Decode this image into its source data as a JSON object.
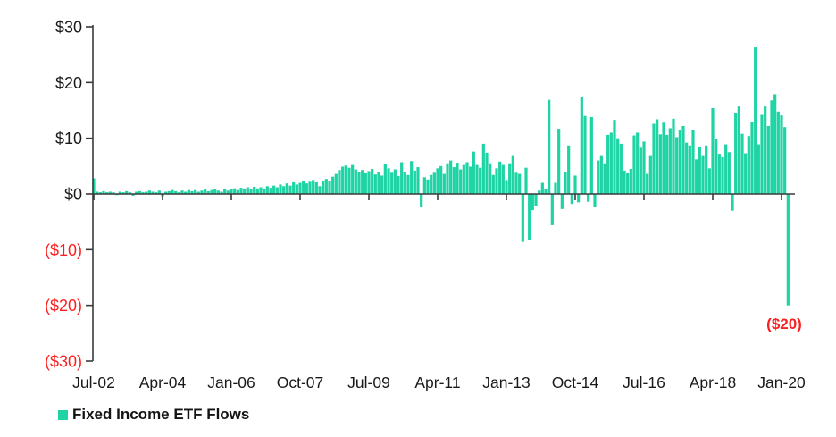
{
  "chart_data": {
    "type": "bar",
    "title": "",
    "series_name": "Fixed Income ETF Flows",
    "x_start": "Jul-02",
    "x_end": "Mar-20",
    "frequency": "monthly",
    "ylim": [
      -30,
      30
    ],
    "grid": false,
    "legend_position": "bottom-left",
    "y_ticks": [
      {
        "value": 30,
        "label": "$30"
      },
      {
        "value": 20,
        "label": "$20"
      },
      {
        "value": 10,
        "label": "$10"
      },
      {
        "value": 0,
        "label": "$0"
      },
      {
        "value": -10,
        "label": "($10)"
      },
      {
        "value": -20,
        "label": "($20)"
      },
      {
        "value": -30,
        "label": "($30)"
      }
    ],
    "x_ticks": [
      {
        "index": 0,
        "label": "Jul-02"
      },
      {
        "index": 21,
        "label": "Apr-04"
      },
      {
        "index": 42,
        "label": "Jan-06"
      },
      {
        "index": 63,
        "label": "Oct-07"
      },
      {
        "index": 84,
        "label": "Jul-09"
      },
      {
        "index": 105,
        "label": "Apr-11"
      },
      {
        "index": 126,
        "label": "Jan-13"
      },
      {
        "index": 147,
        "label": "Oct-14"
      },
      {
        "index": 168,
        "label": "Jul-16"
      },
      {
        "index": 189,
        "label": "Apr-18"
      },
      {
        "index": 210,
        "label": "Jan-20"
      }
    ],
    "values": [
      2.8,
      0.4,
      0.3,
      0.5,
      0.3,
      0.4,
      0.3,
      -0.2,
      0.4,
      0.3,
      0.5,
      0.3,
      -0.3,
      0.4,
      0.5,
      0.3,
      0.4,
      0.6,
      0.4,
      0.3,
      0.6,
      -0.4,
      0.4,
      0.5,
      0.7,
      0.5,
      0.3,
      0.6,
      0.4,
      0.7,
      0.5,
      0.7,
      0.4,
      0.6,
      0.8,
      0.5,
      0.7,
      0.9,
      0.6,
      0.4,
      0.8,
      0.6,
      0.8,
      1.0,
      0.7,
      1.1,
      0.8,
      1.2,
      0.9,
      1.3,
      1.0,
      1.2,
      0.9,
      1.4,
      1.1,
      1.5,
      1.2,
      1.7,
      1.4,
      1.9,
      1.5,
      2.1,
      1.7,
      2.0,
      2.3,
      1.9,
      2.2,
      2.5,
      2.1,
      1.4,
      2.4,
      2.7,
      2.3,
      3.1,
      3.6,
      4.3,
      4.9,
      5.1,
      4.7,
      5.2,
      4.4,
      3.9,
      4.3,
      3.7,
      4.1,
      4.5,
      3.5,
      3.9,
      3.3,
      5.4,
      4.6,
      3.8,
      4.4,
      3.2,
      5.7,
      4.0,
      3.4,
      5.9,
      4.2,
      4.8,
      -2.4,
      3.0,
      2.6,
      3.4,
      3.8,
      4.6,
      5.0,
      3.6,
      5.5,
      6.0,
      4.8,
      5.6,
      4.4,
      5.2,
      5.7,
      4.9,
      7.6,
      5.2,
      4.7,
      9.0,
      7.4,
      5.5,
      3.4,
      4.6,
      5.8,
      5.2,
      2.5,
      5.5,
      6.8,
      3.8,
      3.6,
      -8.6,
      4.7,
      -8.3,
      -2.9,
      -2.1,
      0.6,
      2.0,
      0.8,
      16.9,
      -5.6,
      2.0,
      11.7,
      -2.7,
      4.0,
      8.7,
      -1.8,
      3.3,
      -1.5,
      17.5,
      14.0,
      -1.4,
      13.8,
      -2.4,
      6.0,
      6.8,
      5.5,
      10.6,
      11.0,
      13.3,
      10.0,
      9.0,
      4.2,
      3.7,
      4.5,
      10.5,
      11.0,
      8.3,
      9.4,
      3.6,
      6.8,
      12.6,
      13.4,
      10.7,
      12.8,
      10.6,
      11.8,
      13.5,
      10.2,
      11.4,
      12.2,
      9.2,
      8.7,
      11.4,
      6.2,
      8.4,
      6.8,
      8.7,
      4.6,
      15.4,
      9.8,
      7.2,
      6.6,
      8.9,
      7.5,
      -3.0,
      14.5,
      15.7,
      10.8,
      7.3,
      10.4,
      13.0,
      26.3,
      8.9,
      14.2,
      15.7,
      12.2,
      16.8,
      17.9,
      14.8,
      14.1,
      12.0,
      -20.0
    ],
    "legend": [
      {
        "label": "Fixed Income ETF Flows",
        "color": "#1ed3a4"
      }
    ],
    "annotation": {
      "text": "($20)",
      "target_value": -20,
      "color": "#fb2020"
    },
    "colors": {
      "bar": "#1ed3a4",
      "axis": "#3a3a3a",
      "positive_label": "#1a1a1a",
      "negative_label": "#fb2020",
      "background": "#ffffff"
    }
  }
}
